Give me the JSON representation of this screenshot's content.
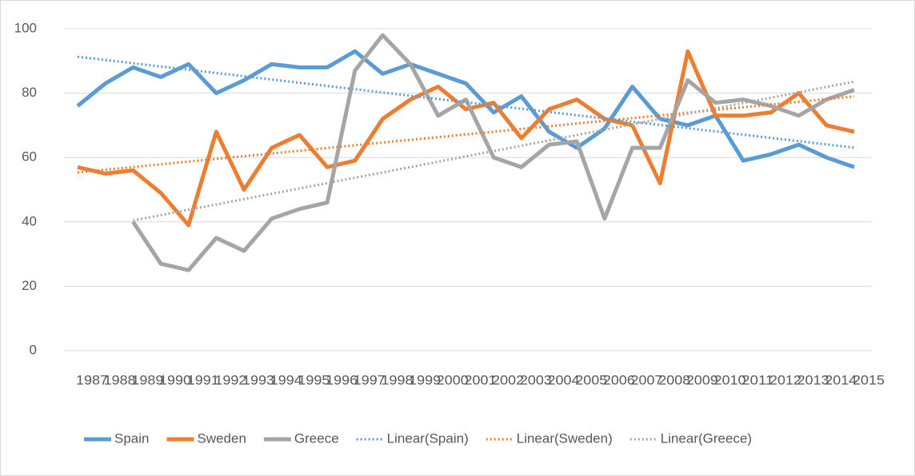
{
  "chart_data": {
    "type": "line",
    "categories": [
      "1987",
      "1988",
      "1989",
      "1990",
      "1991",
      "1992",
      "1993",
      "1994",
      "1995",
      "1996",
      "1997",
      "1998",
      "1999",
      "2000",
      "2001",
      "2002",
      "2003",
      "2004",
      "2005",
      "2006",
      "2007",
      "2008",
      "2009",
      "2010",
      "2011",
      "2012",
      "2013",
      "2014",
      "2015"
    ],
    "series": [
      {
        "name": "Spain",
        "color": "#5b9bd5",
        "values": [
          76,
          83,
          88,
          85,
          89,
          80,
          84,
          89,
          88,
          88,
          93,
          86,
          89,
          86,
          83,
          74,
          79,
          68,
          63,
          69,
          82,
          72,
          70,
          73,
          59,
          61,
          64,
          60,
          57
        ]
      },
      {
        "name": "Sweden",
        "color": "#ed7d31",
        "values": [
          57,
          55,
          56,
          49,
          39,
          68,
          50,
          63,
          67,
          57,
          59,
          72,
          78,
          82,
          75,
          77,
          66,
          75,
          78,
          72,
          70,
          52,
          93,
          73,
          73,
          74,
          80,
          70,
          68
        ]
      },
      {
        "name": "Greece",
        "color": "#a5a5a5",
        "values": [
          null,
          null,
          40,
          27,
          25,
          35,
          31,
          41,
          44,
          46,
          87,
          98,
          89,
          73,
          78,
          60,
          57,
          64,
          65,
          41,
          63,
          63,
          84,
          77,
          78,
          76,
          73,
          78,
          81
        ]
      }
    ],
    "trendlines": [
      {
        "name": "Linear(Spain)",
        "color": "#5b9bd5",
        "of": 0
      },
      {
        "name": "Linear(Sweden)",
        "color": "#ed7d31",
        "of": 1
      },
      {
        "name": "Linear(Greece)",
        "color": "#a5a5a5",
        "of": 2
      }
    ],
    "ylim": [
      0,
      100
    ],
    "yticks": [
      0,
      20,
      40,
      60,
      80,
      100
    ],
    "grid": true,
    "legend": "bottom"
  }
}
